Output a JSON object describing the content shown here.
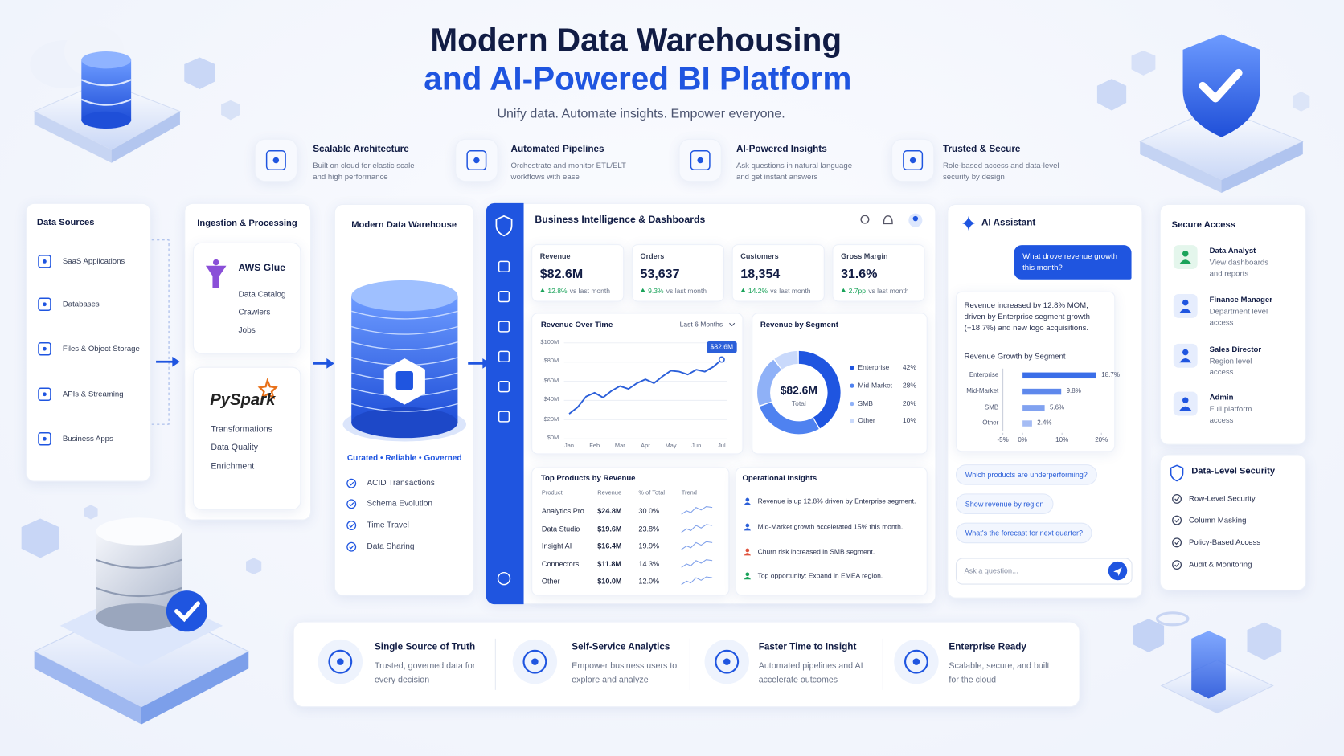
{
  "header": {
    "title_line1": "Modern Data Warehousing",
    "title_line2": "and AI-Powered BI Platform",
    "subtitle": "Unify data. Automate insights. Empower everyone."
  },
  "features": [
    {
      "title": "Scalable Architecture",
      "desc": "Built on cloud for elastic scale and high performance"
    },
    {
      "title": "Automated Pipelines",
      "desc": "Orchestrate and monitor ETL/ELT workflows with ease"
    },
    {
      "title": "AI-Powered Insights",
      "desc": "Ask questions in natural language and get instant answers"
    },
    {
      "title": "Trusted & Secure",
      "desc": "Role-based access and data-level security by design"
    }
  ],
  "data_sources": {
    "title": "Data Sources",
    "items": [
      "SaaS Applications",
      "Databases",
      "Files & Object Storage",
      "APIs & Streaming",
      "Business Apps"
    ]
  },
  "ingestion": {
    "title": "Ingestion & Processing",
    "aws_glue": {
      "name": "AWS Glue",
      "items": [
        "Data Catalog",
        "Crawlers",
        "Jobs"
      ]
    },
    "pyspark": {
      "name": "PySpark",
      "items": [
        "Transformations",
        "Data Quality",
        "Enrichment"
      ]
    }
  },
  "warehouse": {
    "title": "Modern Data Warehouse",
    "tagline": "Curated • Reliable • Governed",
    "items": [
      "ACID Transactions",
      "Schema Evolution",
      "Time Travel",
      "Data Sharing"
    ]
  },
  "dashboard": {
    "title": "Business Intelligence & Dashboards",
    "kpis": [
      {
        "label": "Revenue",
        "value": "$82.6M",
        "change": "12.8%",
        "note": "vs last month"
      },
      {
        "label": "Orders",
        "value": "53,637",
        "change": "9.3%",
        "note": "vs last month"
      },
      {
        "label": "Customers",
        "value": "18,354",
        "change": "14.2%",
        "note": "vs last month"
      },
      {
        "label": "Gross Margin",
        "value": "31.6%",
        "change": "2.7pp",
        "note": "vs last month"
      }
    ],
    "revenue_over_time": {
      "type": "line",
      "title": "Revenue Over Time",
      "period": "Last 6 Months",
      "categories": [
        "Jan",
        null,
        null,
        "Feb",
        null,
        null,
        "Mar",
        null,
        null,
        "Apr",
        null,
        null,
        "May",
        null,
        null,
        "Jun",
        null,
        null,
        "Jul"
      ],
      "values": [
        26,
        33,
        44,
        48,
        43,
        50,
        55,
        52,
        58,
        62,
        58,
        65,
        71,
        70,
        67,
        72,
        70,
        75,
        82.6
      ],
      "last_label": "$82.6M",
      "color": "#2b5fd9",
      "ylim": [
        0,
        100
      ],
      "yticks": [
        {
          "value": 0,
          "label": "$0M"
        },
        {
          "value": 20,
          "label": "$20M"
        },
        {
          "value": 40,
          "label": "$40M"
        },
        {
          "value": 60,
          "label": "$60M"
        },
        {
          "value": 80,
          "label": "$80M"
        },
        {
          "value": 100,
          "label": "$100M"
        }
      ],
      "grid": true
    },
    "revenue_by_segment": {
      "type": "pie",
      "title": "Revenue by Segment",
      "center_value": "$82.6M",
      "center_label": "Total",
      "categories": [
        "Enterprise",
        "Mid-Market",
        "SMB",
        "Other"
      ],
      "values": [
        42,
        28,
        20,
        10
      ],
      "value_labels": [
        "42%",
        "28%",
        "20%",
        "10%"
      ],
      "colors": [
        "#1f55e0",
        "#4f82f0",
        "#8fb1f7",
        "#c9d9fb"
      ]
    },
    "top_products": {
      "title": "Top Products by Revenue",
      "columns": [
        "Product",
        "Revenue",
        "% of Total",
        "Trend"
      ],
      "rows": [
        [
          "Analytics Pro",
          "$24.8M",
          "30.0%"
        ],
        [
          "Data Studio",
          "$19.6M",
          "23.8%"
        ],
        [
          "Insight AI",
          "$16.4M",
          "19.9%"
        ],
        [
          "Connectors",
          "$11.8M",
          "14.3%"
        ],
        [
          "Other",
          "$10.0M",
          "12.0%"
        ]
      ]
    },
    "insights": {
      "title": "Operational Insights",
      "items": [
        "Revenue is up 12.8% driven by Enterprise segment.",
        "Mid-Market growth accelerated 15% this month.",
        "Churn risk increased in SMB segment.",
        "Top opportunity: Expand in EMEA region."
      ]
    }
  },
  "ai_assistant": {
    "title": "AI Assistant",
    "question": "What drove revenue growth this month?",
    "answer": "Revenue increased by 12.8% MOM, driven by Enterprise segment growth (+18.7%) and new logo acquisitions.",
    "chart": {
      "type": "bar",
      "title": "Revenue Growth by Segment",
      "categories": [
        "Enterprise",
        "Mid-Market",
        "SMB",
        "Other"
      ],
      "values": [
        18.7,
        9.8,
        5.6,
        2.4
      ],
      "value_labels": [
        "18.7%",
        "9.8%",
        "5.6%",
        "2.4%"
      ],
      "color": "#3a6ee8",
      "xlim": [
        -5,
        20
      ],
      "xticks": [
        {
          "value": -5,
          "label": "-5%"
        },
        {
          "value": 0,
          "label": "0%"
        },
        {
          "value": 10,
          "label": "10%"
        },
        {
          "value": 20,
          "label": "20%"
        }
      ]
    },
    "suggestions": [
      "Which products are underperforming?",
      "Show revenue by region",
      "What's the forecast for next quarter?"
    ],
    "input_placeholder": "Ask a question..."
  },
  "secure_access": {
    "title": "Secure Access",
    "roles": [
      {
        "name": "Data Analyst",
        "desc": "View dashboards and reports"
      },
      {
        "name": "Finance Manager",
        "desc": "Department level access"
      },
      {
        "name": "Sales Director",
        "desc": "Region level access"
      },
      {
        "name": "Admin",
        "desc": "Full platform access"
      }
    ]
  },
  "data_level_security": {
    "title": "Data-Level Security",
    "items": [
      "Row-Level Security",
      "Column Masking",
      "Policy-Based Access",
      "Audit & Monitoring"
    ]
  },
  "benefits": [
    {
      "title": "Single Source of Truth",
      "desc": "Trusted, governed data for every decision"
    },
    {
      "title": "Self-Service Analytics",
      "desc": "Empower business users to explore and analyze"
    },
    {
      "title": "Faster Time to Insight",
      "desc": "Automated pipelines and AI accelerate outcomes"
    },
    {
      "title": "Enterprise Ready",
      "desc": "Scalable, secure, and built for the cloud"
    }
  ]
}
